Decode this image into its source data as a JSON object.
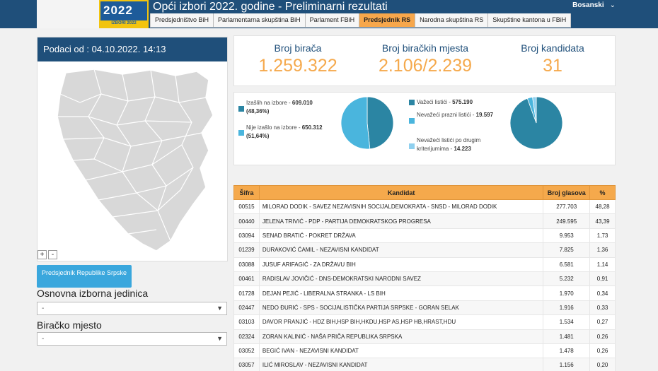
{
  "header": {
    "title": "Opći izbori 2022. godine - Preliminarni rezultati",
    "logo_text": "2022",
    "logo_band": "IZBORI 2022",
    "language": "Bosanski",
    "tabs": [
      {
        "label": "Predsjedništvo BiH",
        "active": false
      },
      {
        "label": "Parlamentarna skupština BiH",
        "active": false
      },
      {
        "label": "Parlament FBiH",
        "active": false
      },
      {
        "label": "Predsjednik RS",
        "active": true
      },
      {
        "label": "Narodna skupština RS",
        "active": false
      },
      {
        "label": "Skupštine kantona u FBiH",
        "active": false
      }
    ]
  },
  "left": {
    "date_label": "Podaci od : 04.10.2022. 14:13",
    "zoom_in": "+",
    "zoom_out": "-",
    "button_label": "Predsjednik Republike Srpske",
    "unit_label": "Osnovna izborna jedinica",
    "unit_value": "-",
    "place_label": "Biračko mjesto",
    "place_value": "-"
  },
  "stats": {
    "voters_label": "Broj birača",
    "voters_value": "1.259.322",
    "stations_label": "Broj biračkih mjesta",
    "stations_value": "2.106/2.239",
    "candidates_label": "Broj kandidata",
    "candidates_value": "31"
  },
  "turnout": {
    "voted_label": "Izašlih na izbore - ",
    "voted_value": "609.010",
    "voted_pct": "(48,36%)",
    "not_voted_label": "Nije izašlo na izbore - ",
    "not_voted_value": "650.312 (51,64%)",
    "voted_share": 48.36,
    "colors": {
      "voted": "#2b85a3",
      "not_voted": "#4ab5dd"
    }
  },
  "ballots": {
    "valid_label": "Važeći listići - ",
    "valid_value": "575.190",
    "blank_label": "Nevažeći prazni listići - ",
    "blank_value": "19.597",
    "other_label": "Nevažeći listići po drugim kriterijumima - ",
    "other_value": "14.223",
    "values": [
      575190,
      19597,
      14223
    ],
    "colors": {
      "valid": "#2b85a3",
      "blank": "#4ab5dd",
      "other": "#8fd0ef"
    }
  },
  "table": {
    "headers": {
      "code": "Šifra",
      "candidate": "Kandidat",
      "votes": "Broj glasova",
      "pct": "%"
    },
    "rows": [
      {
        "code": "00515",
        "name": "MILORAD DODIK - SAVEZ NEZAVISNIH SOCIJALDEMOKRATA - SNSD - MILORAD DODIK",
        "votes": "277.703",
        "pct": "48,28"
      },
      {
        "code": "00440",
        "name": "JELENA TRIVIĆ - PDP - PARTIJA DEMOKRATSKOG PROGRESA",
        "votes": "249.595",
        "pct": "43,39"
      },
      {
        "code": "03094",
        "name": "SENAD BRATIĆ - POKRET DRŽAVA",
        "votes": "9.953",
        "pct": "1,73"
      },
      {
        "code": "01239",
        "name": "DURAKOVIĆ ĆAMIL - NEZAVISNI KANDIDAT",
        "votes": "7.825",
        "pct": "1,36"
      },
      {
        "code": "03088",
        "name": "JUSUF ARIFAGIĆ - ZA DRŽAVU BIH",
        "votes": "6.581",
        "pct": "1,14"
      },
      {
        "code": "00461",
        "name": "RADISLAV JOVIČIĆ - DNS-DEMOKRATSKI NARODNI SAVEZ",
        "votes": "5.232",
        "pct": "0,91"
      },
      {
        "code": "01728",
        "name": "DEJAN PEJIĆ - LIBERALNA STRANKA - LS BIH",
        "votes": "1.970",
        "pct": "0,34"
      },
      {
        "code": "02447",
        "name": "NEDO ĐURIĆ - SPS - SOCIJALISTIČKA PARTIJA SRPSKE - GORAN SELAK",
        "votes": "1.916",
        "pct": "0,33"
      },
      {
        "code": "03103",
        "name": "DAVOR PRANJIĆ - HDZ BIH,HSP BIH,HKDU,HSP AS,HSP HB,HRAST,HDU",
        "votes": "1.534",
        "pct": "0,27"
      },
      {
        "code": "02324",
        "name": "ZORAN KALINIĆ - NAŠA PRIČA REPUBLIKA SRPSKA",
        "votes": "1.481",
        "pct": "0,26"
      },
      {
        "code": "03052",
        "name": "BEGIĆ IVAN - NEZAVISNI KANDIDAT",
        "votes": "1.478",
        "pct": "0,26"
      },
      {
        "code": "03057",
        "name": "ILIĆ MIROSLAV - NEZAVISNI KANDIDAT",
        "votes": "1.156",
        "pct": "0,20"
      }
    ]
  }
}
